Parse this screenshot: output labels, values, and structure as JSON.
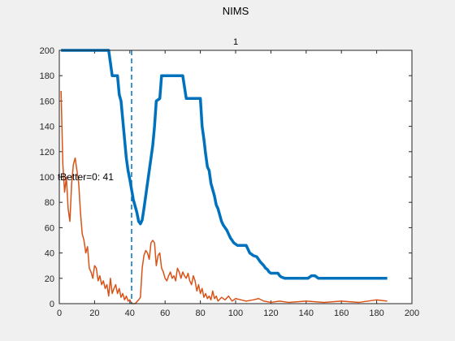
{
  "figure": {
    "title": "NIMS"
  },
  "chart_data": {
    "type": "line",
    "title": "1",
    "xlabel": "",
    "ylabel": "",
    "xlim": [
      0,
      200
    ],
    "ylim": [
      0,
      200
    ],
    "x_ticks": [
      0,
      20,
      40,
      60,
      80,
      100,
      120,
      140,
      160,
      180,
      200
    ],
    "y_ticks": [
      0,
      20,
      40,
      60,
      80,
      100,
      120,
      140,
      160,
      180,
      200
    ],
    "grid": false,
    "annotation": {
      "text": "tBetter=0: 41",
      "x": -1,
      "y": 100
    },
    "vline": {
      "x": 41,
      "style": "dashed",
      "color": "#0072BD"
    },
    "series": [
      {
        "color": "#0072BD",
        "width": 3.5,
        "points": [
          [
            1,
            200
          ],
          [
            28,
            200
          ],
          [
            30,
            180
          ],
          [
            33,
            180
          ],
          [
            34,
            165
          ],
          [
            35,
            160
          ],
          [
            36,
            145
          ],
          [
            37,
            130
          ],
          [
            38,
            115
          ],
          [
            39,
            105
          ],
          [
            40,
            98
          ],
          [
            41,
            90
          ],
          [
            42,
            82
          ],
          [
            43,
            77
          ],
          [
            44,
            72
          ],
          [
            45,
            65
          ],
          [
            46,
            63
          ],
          [
            47,
            66
          ],
          [
            48,
            75
          ],
          [
            49,
            85
          ],
          [
            50,
            95
          ],
          [
            51,
            105
          ],
          [
            52,
            115
          ],
          [
            53,
            125
          ],
          [
            54,
            140
          ],
          [
            55,
            160
          ],
          [
            57,
            162
          ],
          [
            58,
            180
          ],
          [
            70,
            180
          ],
          [
            72,
            162
          ],
          [
            80,
            162
          ],
          [
            81,
            140
          ],
          [
            82,
            130
          ],
          [
            83,
            118
          ],
          [
            84,
            108
          ],
          [
            85,
            105
          ],
          [
            86,
            95
          ],
          [
            87,
            90
          ],
          [
            88,
            85
          ],
          [
            89,
            78
          ],
          [
            90,
            75
          ],
          [
            91,
            70
          ],
          [
            92,
            65
          ],
          [
            93,
            62
          ],
          [
            94,
            60
          ],
          [
            95,
            58
          ],
          [
            96,
            55
          ],
          [
            97,
            52
          ],
          [
            98,
            50
          ],
          [
            99,
            48
          ],
          [
            101,
            46
          ],
          [
            106,
            46
          ],
          [
            107,
            43
          ],
          [
            108,
            40
          ],
          [
            110,
            38
          ],
          [
            112,
            37
          ],
          [
            113,
            35
          ],
          [
            114,
            33
          ],
          [
            116,
            30
          ],
          [
            117,
            28
          ],
          [
            118,
            27
          ],
          [
            119,
            25
          ],
          [
            120,
            24
          ],
          [
            124,
            24
          ],
          [
            125,
            22
          ],
          [
            126,
            21
          ],
          [
            128,
            20
          ],
          [
            141,
            20
          ],
          [
            143,
            22
          ],
          [
            145,
            22
          ],
          [
            147,
            20
          ],
          [
            186,
            20
          ]
        ]
      },
      {
        "color": "#D95319",
        "width": 1.5,
        "points": [
          [
            1,
            168
          ],
          [
            2,
            110
          ],
          [
            3,
            88
          ],
          [
            4,
            100
          ],
          [
            5,
            75
          ],
          [
            6,
            65
          ],
          [
            7,
            95
          ],
          [
            8,
            110
          ],
          [
            9,
            115
          ],
          [
            10,
            105
          ],
          [
            11,
            95
          ],
          [
            12,
            72
          ],
          [
            13,
            55
          ],
          [
            14,
            50
          ],
          [
            15,
            40
          ],
          [
            16,
            45
          ],
          [
            17,
            28
          ],
          [
            18,
            25
          ],
          [
            19,
            20
          ],
          [
            20,
            30
          ],
          [
            21,
            28
          ],
          [
            22,
            18
          ],
          [
            23,
            22
          ],
          [
            24,
            15
          ],
          [
            25,
            18
          ],
          [
            26,
            12
          ],
          [
            27,
            15
          ],
          [
            28,
            6
          ],
          [
            29,
            20
          ],
          [
            30,
            8
          ],
          [
            31,
            12
          ],
          [
            32,
            15
          ],
          [
            33,
            8
          ],
          [
            34,
            12
          ],
          [
            35,
            5
          ],
          [
            36,
            8
          ],
          [
            37,
            3
          ],
          [
            38,
            6
          ],
          [
            39,
            2
          ],
          [
            40,
            3
          ],
          [
            41,
            0
          ],
          [
            43,
            0
          ],
          [
            45,
            3
          ],
          [
            46,
            5
          ],
          [
            47,
            28
          ],
          [
            48,
            38
          ],
          [
            49,
            42
          ],
          [
            50,
            40
          ],
          [
            51,
            35
          ],
          [
            52,
            48
          ],
          [
            53,
            50
          ],
          [
            54,
            48
          ],
          [
            55,
            30
          ],
          [
            56,
            38
          ],
          [
            57,
            40
          ],
          [
            58,
            28
          ],
          [
            59,
            25
          ],
          [
            60,
            20
          ],
          [
            61,
            18
          ],
          [
            62,
            22
          ],
          [
            63,
            25
          ],
          [
            64,
            20
          ],
          [
            65,
            22
          ],
          [
            66,
            18
          ],
          [
            67,
            28
          ],
          [
            68,
            25
          ],
          [
            69,
            20
          ],
          [
            70,
            25
          ],
          [
            71,
            22
          ],
          [
            72,
            20
          ],
          [
            73,
            24
          ],
          [
            74,
            18
          ],
          [
            75,
            15
          ],
          [
            76,
            22
          ],
          [
            77,
            18
          ],
          [
            78,
            10
          ],
          [
            79,
            15
          ],
          [
            80,
            8
          ],
          [
            81,
            12
          ],
          [
            82,
            5
          ],
          [
            83,
            8
          ],
          [
            84,
            4
          ],
          [
            85,
            6
          ],
          [
            86,
            3
          ],
          [
            87,
            10
          ],
          [
            88,
            4
          ],
          [
            89,
            6
          ],
          [
            90,
            2
          ],
          [
            92,
            5
          ],
          [
            94,
            3
          ],
          [
            96,
            6
          ],
          [
            98,
            2
          ],
          [
            100,
            4
          ],
          [
            103,
            3
          ],
          [
            106,
            2
          ],
          [
            110,
            3
          ],
          [
            113,
            4
          ],
          [
            116,
            2
          ],
          [
            120,
            1
          ],
          [
            125,
            2
          ],
          [
            130,
            1
          ],
          [
            140,
            2
          ],
          [
            150,
            1
          ],
          [
            160,
            2
          ],
          [
            170,
            1
          ],
          [
            180,
            3
          ],
          [
            186,
            2
          ]
        ]
      }
    ]
  }
}
